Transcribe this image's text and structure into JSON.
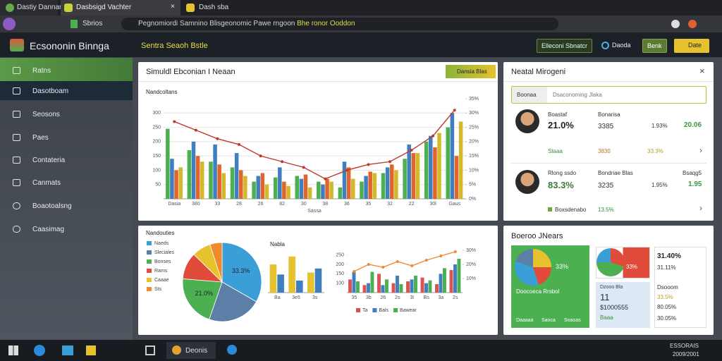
{
  "browser": {
    "tabs": [
      "Dastiy Dannan",
      "Dasbsigd Vachter",
      "Dash sba"
    ],
    "site": "Sbrios",
    "url": "Pegnomiordi Samnino Blisgeonomic Pawe rngoon",
    "url_highlight": "Bhe ronor Ooddon"
  },
  "header": {
    "title": "Ecsononin Binnga",
    "search": "Sentra Seaoh Bstle",
    "buttons": [
      "Elleconi Sbnatcr",
      "Daoda",
      "Benk",
      "Date"
    ]
  },
  "sidebar": [
    "Ratns",
    "Dasotboam",
    "Seosons",
    "Paes",
    "Contateria",
    "Canmats",
    "Boaotoalsng",
    "Caasimag"
  ],
  "main": {
    "badge": "Dansia Blas"
  },
  "people_panel": {
    "title": "Neatal Mirogeni",
    "filter": "Boonaa",
    "search": "Dsaconoming Jlaka",
    "people": [
      {
        "name": "Boastaf",
        "value": "21.0%",
        "label2": "Bonarisa",
        "value2": "3385",
        "value3": "1.93%",
        "value4": "20.06",
        "sub": [
          "Staaa",
          "3830",
          "33.3%"
        ]
      },
      {
        "name": "Rlong ssdo",
        "value": "83.3%",
        "label2": "Bondriae Blas",
        "label4": "Bsaqg5",
        "value2": "3235",
        "value3": "1.95%",
        "value4": "1.95",
        "sub": [
          "Boxsdenabo",
          "13.5%"
        ]
      }
    ]
  },
  "summary": {
    "title": "Boeroo JNears",
    "tile1": [
      "33%",
      "Doocoeca Rrsbol",
      "Daaaaa",
      "Saoca",
      "Soaoas"
    ],
    "tile2": [
      "33%"
    ],
    "tile3": [
      "Dzooo Bla",
      "11",
      "$1000555",
      "Baaa"
    ],
    "tile4": [
      "31.40%",
      "31.11%",
      "Dsooom",
      "33.5%",
      "80.05%",
      "30.05%"
    ]
  },
  "taskbar": {
    "app": "Deonis",
    "time": "ESSORAIS",
    "date": "2009/2001"
  },
  "chart_data": [
    {
      "type": "bar",
      "title": "Simuldl Ebconian I Neaan",
      "subtitle": "Nandcoltans",
      "xlabel": "Sassa",
      "categories": [
        "Dasia",
        "380",
        "33",
        "28",
        "26",
        "82",
        "30",
        "38",
        "36",
        "35",
        "32",
        "22",
        "30l",
        "Gaus"
      ],
      "ylim": [
        0,
        350
      ],
      "yticks": [
        50,
        100,
        150,
        200,
        250,
        300
      ],
      "y2lim": [
        0,
        35
      ],
      "y2ticks": [
        {
          "value": 0,
          "label": "0%"
        },
        {
          "value": 5,
          "label": "5%"
        },
        {
          "value": 10,
          "label": "10%"
        },
        {
          "value": 15,
          "label": "15%"
        },
        {
          "value": 20,
          "label": "20%"
        },
        {
          "value": 25,
          "label": "25%"
        },
        {
          "value": 30,
          "label": "30%"
        },
        {
          "value": 35,
          "label": "35%"
        }
      ],
      "grid": true,
      "series": [
        {
          "color": "#4caf50",
          "values": [
            245,
            170,
            130,
            110,
            60,
            75,
            80,
            60,
            40,
            60,
            90,
            140,
            200,
            250
          ]
        },
        {
          "color": "#3f7fbf",
          "values": [
            140,
            200,
            190,
            160,
            80,
            110,
            70,
            50,
            130,
            80,
            110,
            190,
            220,
            300
          ]
        },
        {
          "color": "#e0652d",
          "values": [
            100,
            150,
            120,
            100,
            90,
            60,
            85,
            70,
            110,
            95,
            120,
            160,
            180,
            150
          ]
        },
        {
          "color": "#d4b82a",
          "values": [
            110,
            130,
            90,
            80,
            50,
            45,
            40,
            60,
            70,
            90,
            100,
            160,
            230,
            270
          ]
        },
        {
          "type": "line",
          "axis": "y2",
          "color": "#c0392b",
          "values": [
            27,
            24,
            21,
            19,
            15,
            13,
            11,
            7,
            10,
            12,
            13,
            17,
            22,
            31
          ]
        }
      ]
    },
    {
      "type": "pie",
      "title": "Nandouties",
      "categories": [
        "Naeds",
        "Sleciales",
        "Bonses",
        "Rams",
        "Caaae",
        "Sts"
      ],
      "colors": [
        "#3a9fd6",
        "#5b7fa6",
        "#4caf50",
        "#e04b3a",
        "#e6c22e",
        "#ef8a2f"
      ],
      "values": [
        33.3,
        22,
        21.0,
        11,
        7.7,
        5
      ],
      "value_labels": [
        "33.3%",
        null,
        "21.0%",
        null,
        null,
        null
      ]
    },
    {
      "type": "bar",
      "title": "Nabla",
      "categories": [
        "Ba",
        "3e5",
        "3s"
      ],
      "ylim": [
        0,
        200
      ],
      "series": [
        {
          "color": "#e6c22e",
          "values": [
            140,
            180,
            100
          ]
        },
        {
          "color": "#3f7fbf",
          "values": [
            90,
            60,
            120
          ]
        }
      ]
    },
    {
      "type": "bar",
      "categories": [
        "35",
        "3b",
        "26",
        "2s",
        "3l",
        "Bs",
        "3a",
        "2s"
      ],
      "ylim": [
        50,
        275
      ],
      "yticks": [
        100,
        150,
        200,
        250
      ],
      "y2lim": [
        0,
        30
      ],
      "y2ticks": [
        {
          "value": 10,
          "label": "10%"
        },
        {
          "value": 20,
          "label": "20%"
        },
        {
          "value": 30,
          "label": "30%"
        }
      ],
      "series": [
        {
          "name": "Ta",
          "color": "#d9534f",
          "values": [
            120,
            90,
            150,
            100,
            110,
            130,
            95,
            170
          ]
        },
        {
          "name": "Bals",
          "color": "#3f7fbf",
          "values": [
            160,
            100,
            90,
            140,
            120,
            100,
            150,
            200
          ]
        },
        {
          "name": "Bawear",
          "color": "#4caf50",
          "values": [
            110,
            160,
            120,
            95,
            140,
            115,
            180,
            230
          ]
        },
        {
          "type": "line",
          "axis": "y2",
          "color": "#ef8a2f",
          "values": [
            15,
            20,
            18,
            22,
            19,
            23,
            26,
            29
          ]
        }
      ]
    }
  ]
}
